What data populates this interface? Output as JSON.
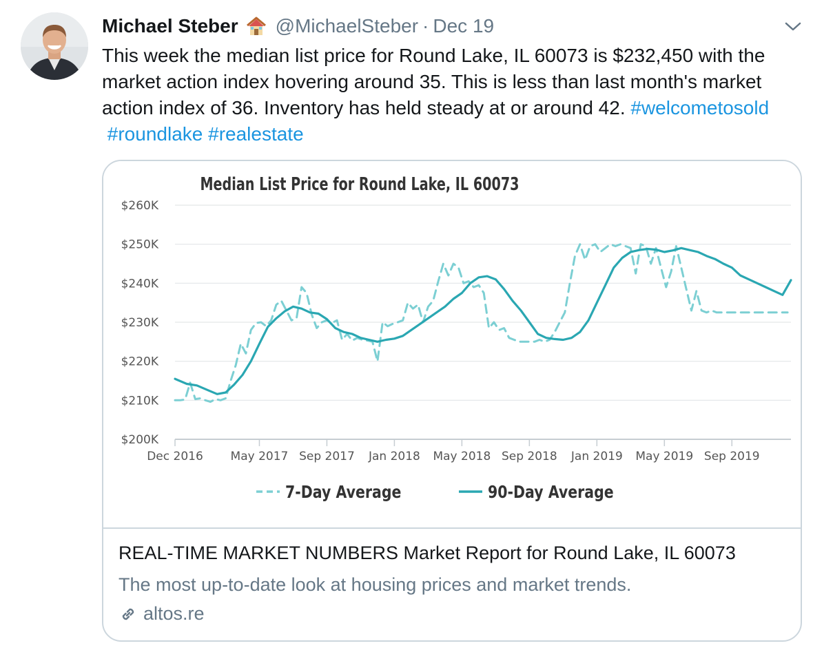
{
  "tweet": {
    "author_name": "Michael Steber",
    "author_emoji": "house-emoji",
    "handle": "@MichaelSteber",
    "separator": "·",
    "date": "Dec 19",
    "text_lines": [
      "This week the median list price for Round Lake, IL 60073 is $232,450 with the",
      "market action index hovering around 35. This is less than last month's market",
      "action index of 36. Inventory has held steady at or around 42."
    ],
    "hashtags": [
      "#welcometosold",
      "#roundlake",
      "#realestate"
    ]
  },
  "card": {
    "title": "REAL-TIME MARKET NUMBERS Market Report for Round Lake, IL 60073",
    "description": "The most up-to-date look at housing prices and market trends.",
    "domain": "altos.re"
  },
  "colors": {
    "hashtag": "#1b95e0",
    "muted": "#657786",
    "line_90": "#2aa7b2",
    "line_7": "#7ccfd3",
    "border": "#ccd6dd"
  },
  "chart_data": {
    "type": "line",
    "title": "Median List Price for Round Lake, IL 60073",
    "ylabel": "",
    "xlabel": "",
    "ylim": [
      200000,
      260000
    ],
    "yticks": [
      200000,
      210000,
      220000,
      230000,
      240000,
      250000,
      260000
    ],
    "ytick_labels": [
      "$200K",
      "$210K",
      "$220K",
      "$230K",
      "$240K",
      "$250K",
      "$260K"
    ],
    "xlim": [
      0,
      36.5
    ],
    "xticks": [
      0,
      5,
      9,
      13,
      17,
      21,
      25,
      29,
      33
    ],
    "xtick_labels": [
      "Dec 2016",
      "May 2017",
      "Sep 2017",
      "Jan 2018",
      "May 2018",
      "Sep 2018",
      "Jan 2019",
      "May 2019",
      "Sep 2019"
    ],
    "legend": [
      "7-Day Average",
      "90-Day Average"
    ],
    "series": [
      {
        "name": "90-Day Average",
        "style": "solid",
        "x": [
          0,
          0.7,
          1.3,
          2.0,
          2.5,
          3.0,
          3.5,
          4.0,
          4.5,
          5.0,
          5.5,
          6.0,
          6.5,
          7.0,
          7.5,
          8.0,
          8.5,
          9.0,
          9.5,
          10.0,
          10.5,
          11.0,
          11.5,
          12.0,
          12.5,
          13.0,
          13.5,
          14.0,
          14.5,
          15.0,
          15.5,
          16.0,
          16.5,
          17.0,
          17.5,
          18.0,
          18.5,
          19.0,
          19.5,
          20.0,
          20.5,
          21.0,
          21.5,
          22.0,
          22.5,
          23.0,
          23.5,
          24.0,
          24.5,
          25.0,
          25.5,
          26.0,
          26.5,
          27.0,
          27.5,
          28.0,
          28.5,
          29.0,
          29.5,
          30.0,
          30.5,
          31.0,
          31.5,
          32.0,
          32.5,
          33.0,
          33.5,
          34.0,
          34.5,
          35.0,
          35.5,
          36.0,
          36.5
        ],
        "values": [
          215500,
          214200,
          213800,
          212500,
          211600,
          212000,
          214000,
          216500,
          220000,
          224500,
          228800,
          231000,
          232800,
          234000,
          233500,
          232500,
          232200,
          230800,
          228500,
          227500,
          227000,
          226000,
          225500,
          225000,
          225500,
          225800,
          226500,
          228000,
          229500,
          231000,
          232500,
          234000,
          236000,
          237500,
          240000,
          241500,
          241800,
          241000,
          238500,
          235500,
          233000,
          230000,
          227000,
          226000,
          225700,
          225500,
          226000,
          227500,
          230500,
          235000,
          239500,
          244000,
          246500,
          248000,
          248500,
          248800,
          248600,
          248000,
          248400,
          249000,
          248500,
          248000,
          247000,
          246200,
          245000,
          244000,
          242000,
          241000,
          240000,
          239000,
          238000,
          237000,
          240800
        ]
      },
      {
        "name": "7-Day Average",
        "style": "dashed",
        "x": [
          0,
          0.3,
          0.6,
          0.9,
          1.2,
          1.5,
          1.8,
          2.1,
          2.4,
          2.7,
          3.0,
          3.3,
          3.6,
          3.9,
          4.2,
          4.5,
          4.8,
          5.1,
          5.4,
          5.7,
          6.0,
          6.3,
          6.6,
          6.9,
          7.2,
          7.5,
          7.8,
          8.1,
          8.4,
          8.7,
          9.0,
          9.3,
          9.6,
          9.9,
          10.2,
          10.5,
          10.8,
          11.1,
          11.4,
          11.7,
          12.0,
          12.3,
          12.6,
          12.9,
          13.2,
          13.5,
          13.8,
          14.1,
          14.4,
          14.7,
          15.0,
          15.3,
          15.6,
          15.9,
          16.2,
          16.5,
          16.8,
          17.1,
          17.4,
          17.7,
          18.0,
          18.3,
          18.6,
          18.9,
          19.2,
          19.5,
          19.8,
          20.1,
          20.4,
          20.7,
          21.0,
          21.3,
          21.6,
          21.9,
          22.2,
          22.5,
          22.8,
          23.1,
          23.4,
          23.7,
          24.0,
          24.3,
          24.6,
          24.9,
          25.2,
          25.5,
          25.8,
          26.1,
          26.4,
          26.7,
          27.0,
          27.3,
          27.6,
          27.9,
          28.2,
          28.5,
          28.8,
          29.1,
          29.4,
          29.7,
          30.0,
          30.3,
          30.6,
          30.9,
          31.2,
          31.5,
          31.8,
          32.1,
          32.4,
          32.7,
          33.0,
          33.3,
          33.6,
          33.9,
          34.2,
          34.5,
          34.8,
          35.1,
          35.4,
          35.7,
          36.0,
          36.3
        ],
        "values": [
          210000,
          210000,
          210200,
          214500,
          210300,
          210500,
          210000,
          209600,
          210300,
          210000,
          210500,
          215000,
          219000,
          224500,
          222000,
          228000,
          229800,
          230000,
          229000,
          230500,
          234500,
          235500,
          233000,
          230500,
          231000,
          239000,
          237500,
          232000,
          228500,
          230000,
          230500,
          229800,
          230500,
          225500,
          227000,
          225300,
          226000,
          225500,
          225300,
          225000,
          220000,
          230000,
          229000,
          229600,
          230000,
          230500,
          235000,
          233500,
          234500,
          230000,
          234000,
          235500,
          240500,
          245000,
          242000,
          245000,
          244000,
          240000,
          240500,
          239000,
          239500,
          237500,
          228500,
          230000,
          228000,
          228500,
          226000,
          225500,
          225000,
          225000,
          225000,
          225000,
          225500,
          225000,
          225500,
          227500,
          230000,
          232500,
          240000,
          247000,
          250000,
          246000,
          249500,
          250000,
          248000,
          249000,
          250000,
          249500,
          250000,
          249500,
          249000,
          242500,
          250000,
          249500,
          245000,
          249000,
          244000,
          239000,
          243000,
          249500,
          244000,
          238500,
          233000,
          238000,
          233000,
          232500,
          233000,
          232500,
          232500,
          232500,
          232500,
          232500,
          232500,
          232500,
          232500,
          232500,
          232500,
          232500,
          232500,
          232500,
          232500,
          232500
        ]
      }
    ]
  }
}
